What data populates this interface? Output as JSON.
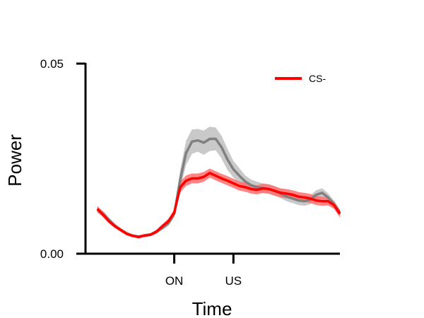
{
  "chart_data": {
    "type": "line",
    "xlabel": "Time",
    "ylabel": "Power",
    "ylim": [
      0,
      0.05
    ],
    "y_ticks": [
      "0.00",
      "0.05"
    ],
    "x_ticks": [
      {
        "label": "ON",
        "x": 30
      },
      {
        "label": "US",
        "x": 50
      }
    ],
    "xlim": [
      0,
      86
    ],
    "legend": {
      "position": "top-right",
      "entries": [
        {
          "label": "CS-",
          "color": "#ff0000"
        }
      ]
    },
    "grid": false,
    "series": [
      {
        "color": "#808080",
        "band_color": "#c0c0c0",
        "x": [
          4,
          6,
          8,
          10,
          12,
          14,
          16,
          18,
          20,
          22,
          24,
          26,
          28,
          30,
          32,
          34,
          36,
          38,
          40,
          42,
          44,
          46,
          48,
          50,
          52,
          54,
          56,
          58,
          60,
          62,
          64,
          66,
          68,
          70,
          72,
          74,
          76,
          78,
          80,
          82,
          84,
          86
        ],
        "y": [
          0.0115,
          0.0105,
          0.0088,
          0.0073,
          0.0062,
          0.0053,
          0.0047,
          0.0045,
          0.0047,
          0.005,
          0.0058,
          0.0068,
          0.008,
          0.0105,
          0.0195,
          0.0265,
          0.0295,
          0.0298,
          0.0292,
          0.0302,
          0.0302,
          0.028,
          0.0248,
          0.0222,
          0.0205,
          0.019,
          0.018,
          0.0175,
          0.0172,
          0.017,
          0.0165,
          0.0158,
          0.015,
          0.0145,
          0.014,
          0.0138,
          0.0142,
          0.0155,
          0.016,
          0.0148,
          0.013,
          0.0108
        ],
        "err": [
          0.0008,
          0.0008,
          0.0007,
          0.0006,
          0.0005,
          0.0005,
          0.0004,
          0.0004,
          0.0004,
          0.0004,
          0.0005,
          0.0006,
          0.0007,
          0.001,
          0.0025,
          0.0032,
          0.0032,
          0.003,
          0.0032,
          0.0032,
          0.003,
          0.003,
          0.0028,
          0.0022,
          0.002,
          0.0016,
          0.0015,
          0.0014,
          0.0013,
          0.0013,
          0.0013,
          0.0012,
          0.0012,
          0.0012,
          0.0012,
          0.0012,
          0.0012,
          0.0012,
          0.0012,
          0.0011,
          0.001,
          0.0009
        ]
      },
      {
        "name": "CS-",
        "color": "#ff0000",
        "band_color": "#ff7070",
        "x": [
          4,
          6,
          8,
          10,
          12,
          14,
          16,
          18,
          20,
          22,
          24,
          26,
          28,
          30,
          32,
          34,
          36,
          38,
          40,
          42,
          44,
          46,
          48,
          50,
          52,
          54,
          56,
          58,
          60,
          62,
          64,
          66,
          68,
          70,
          72,
          74,
          76,
          78,
          80,
          82,
          84,
          86
        ],
        "y": [
          0.0118,
          0.0102,
          0.0085,
          0.0072,
          0.0062,
          0.0052,
          0.0047,
          0.0044,
          0.0048,
          0.005,
          0.0058,
          0.0072,
          0.0085,
          0.0108,
          0.0175,
          0.0192,
          0.0198,
          0.0198,
          0.0202,
          0.0212,
          0.0205,
          0.0198,
          0.0192,
          0.0185,
          0.0178,
          0.0175,
          0.017,
          0.0168,
          0.0172,
          0.017,
          0.0165,
          0.016,
          0.0158,
          0.0155,
          0.015,
          0.0148,
          0.0145,
          0.014,
          0.0138,
          0.0138,
          0.0128,
          0.0105
        ],
        "err": [
          0.0008,
          0.0007,
          0.0006,
          0.0005,
          0.0005,
          0.0004,
          0.0004,
          0.0004,
          0.0004,
          0.0004,
          0.0005,
          0.0006,
          0.0007,
          0.0009,
          0.0014,
          0.0014,
          0.0013,
          0.0013,
          0.0013,
          0.0012,
          0.0012,
          0.0012,
          0.0012,
          0.0012,
          0.0012,
          0.0012,
          0.0012,
          0.0012,
          0.0012,
          0.0012,
          0.0012,
          0.0012,
          0.0012,
          0.0012,
          0.0012,
          0.0012,
          0.0012,
          0.0012,
          0.0012,
          0.0011,
          0.001,
          0.001
        ]
      }
    ]
  }
}
